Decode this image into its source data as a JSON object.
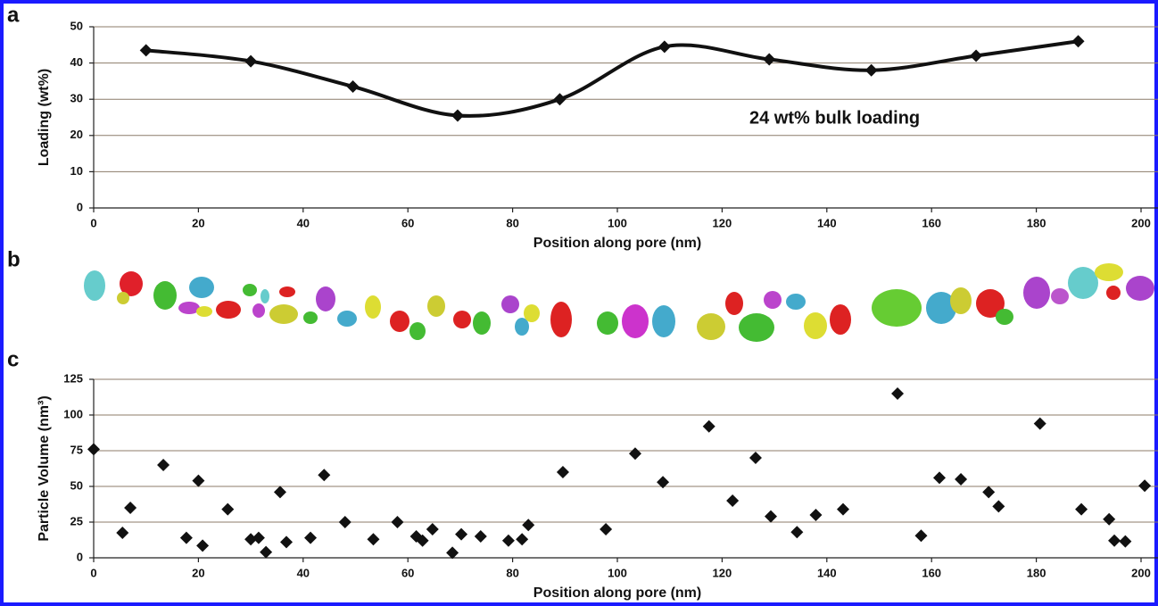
{
  "image_panel": {
    "label": "b"
  },
  "chart_data": [
    {
      "panel": "a",
      "type": "line",
      "y_label": "Loading (wt%)",
      "x_label": "Position along pore (nm)",
      "annotation": "24 wt% bulk loading",
      "x": [
        10,
        30,
        49.5,
        69.5,
        89,
        109,
        129,
        148.5,
        168.5,
        188
      ],
      "values": [
        43.5,
        40.5,
        33.5,
        25.5,
        30,
        44.5,
        41,
        38,
        42,
        46
      ],
      "color": "#111111",
      "xlim": [
        0,
        200
      ],
      "xticks": [
        0,
        20,
        40,
        60,
        80,
        100,
        120,
        140,
        160,
        180,
        200
      ],
      "ylim": [
        0,
        50
      ],
      "yticks": [
        0,
        10,
        20,
        30,
        40,
        50
      ],
      "grid": true
    },
    {
      "panel": "c",
      "type": "scatter",
      "y_label": "Particle Volume (nm³)",
      "x_label": "Position along pore (nm)",
      "x": [
        0,
        5.5,
        7,
        13.3,
        17.7,
        20,
        20.8,
        25.6,
        30,
        31.5,
        32.9,
        35.6,
        36.8,
        41.4,
        44,
        48,
        53.4,
        58,
        61.6,
        62.8,
        64.7,
        68.5,
        70.2,
        73.9,
        79.2,
        81.8,
        83,
        89.6,
        97.8,
        103.4,
        108.7,
        117.5,
        122,
        126.4,
        129.3,
        134.3,
        137.9,
        143.1,
        153.5,
        158,
        161.5,
        165.6,
        170.9,
        172.8,
        180.7,
        188.6,
        193.9,
        194.9,
        197,
        200.7
      ],
      "values": [
        76,
        17.5,
        35,
        65,
        14,
        54,
        8.5,
        34,
        13,
        14,
        4,
        46,
        11,
        14,
        58,
        25,
        13,
        25,
        15,
        12,
        20,
        3.5,
        16.5,
        15,
        12,
        13,
        23,
        60,
        20,
        73,
        53,
        92,
        40,
        70,
        29,
        18,
        30,
        34,
        115,
        15.5,
        56,
        55,
        46,
        36,
        94,
        34,
        27,
        12,
        11.5,
        50.5
      ],
      "color": "#111111",
      "xlim": [
        0,
        200
      ],
      "xticks": [
        0,
        20,
        40,
        60,
        80,
        100,
        120,
        140,
        160,
        180,
        200
      ],
      "ylim": [
        0,
        125
      ],
      "yticks": [
        0,
        25,
        50,
        75,
        100,
        125
      ],
      "grid": true
    }
  ]
}
